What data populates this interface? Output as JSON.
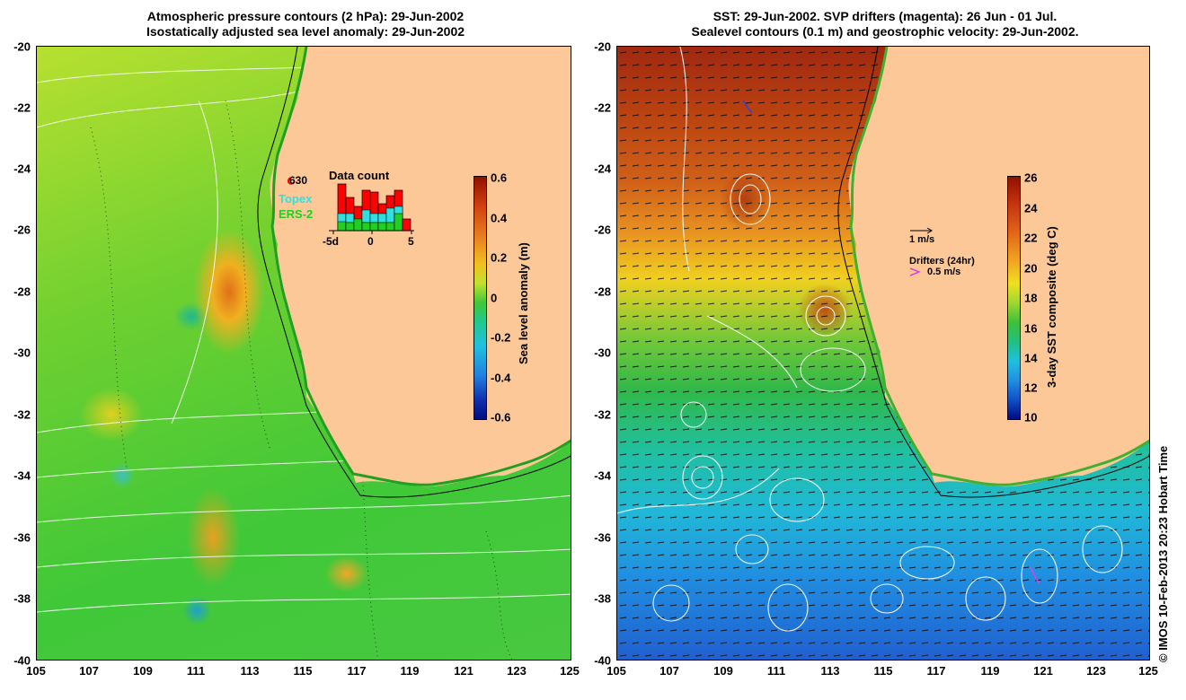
{
  "left_panel": {
    "title_line1": "Atmospheric pressure contours (2 hPa): 29-Jun-2002",
    "title_line2": "Isostatically adjusted sea level anomaly: 29-Jun-2002",
    "colorbar": {
      "label": "Sea level anomaly (m)",
      "ticks": [
        "0.6",
        "0.4",
        "0.2",
        "0",
        "-0.2",
        "-0.4",
        "-0.6"
      ],
      "range": [
        -0.6,
        0.6
      ]
    },
    "inset": {
      "title": "Data count",
      "count_label": "630",
      "legend": [
        {
          "name": "Topex",
          "color": "#30e0e0"
        },
        {
          "name": "ERS-2",
          "color": "#20d020"
        }
      ],
      "xticks": [
        "-5d",
        "0",
        "5"
      ],
      "bar_color": "#ff0000"
    }
  },
  "right_panel": {
    "title_line1": "SST: 29-Jun-2002. SVP drifters (magenta): 26 Jun - 01 Jul.",
    "title_line2": "Sealevel contours (0.1 m) and geostrophic velocity: 29-Jun-2002.",
    "colorbar": {
      "label": "3-day SST composite (deg C)",
      "ticks": [
        "26",
        "24",
        "22",
        "20",
        "18",
        "16",
        "14",
        "12",
        "10"
      ],
      "range": [
        10,
        26
      ]
    },
    "velocity_scale": "1 m/s",
    "drifter_title": "Drifters (24hr)",
    "drifter_scale": "0.5 m/s",
    "drifter_color": "#e040e0"
  },
  "axes": {
    "xticks": [
      "105",
      "107",
      "109",
      "111",
      "113",
      "115",
      "117",
      "119",
      "121",
      "123",
      "125"
    ],
    "yticks": [
      "-20",
      "-22",
      "-24",
      "-26",
      "-28",
      "-30",
      "-32",
      "-34",
      "-36",
      "-38",
      "-40"
    ],
    "lon_range": [
      105,
      125
    ],
    "lat_range": [
      -40,
      -20
    ]
  },
  "land_color": "#fcc898",
  "credit": "© IMOS 10-Feb-2013 20:23 Hobart Time"
}
